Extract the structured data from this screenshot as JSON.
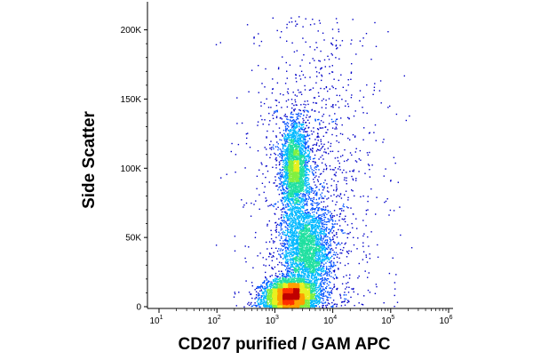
{
  "chart_data": {
    "type": "scatter",
    "style": "density dot plot (flow cytometry)",
    "xlabel": "CD207 purified / GAM APC",
    "ylabel": "Side Scatter",
    "x_scale": "log",
    "xlim": [
      10,
      1000000
    ],
    "x_ticks": [
      {
        "value": 10,
        "base": "10",
        "exp": "1"
      },
      {
        "value": 100,
        "base": "10",
        "exp": "2"
      },
      {
        "value": 1000,
        "base": "10",
        "exp": "3"
      },
      {
        "value": 10000,
        "base": "10",
        "exp": "4"
      },
      {
        "value": 100000,
        "base": "10",
        "exp": "5"
      },
      {
        "value": 1000000,
        "base": "10",
        "exp": "6"
      }
    ],
    "y_scale": "linear",
    "ylim": [
      0,
      210000
    ],
    "y_ticks": [
      {
        "value": 0,
        "label": "0"
      },
      {
        "value": 50000,
        "label": "50K"
      },
      {
        "value": 100000,
        "label": "100K"
      },
      {
        "value": 150000,
        "label": "150K"
      },
      {
        "value": 200000,
        "label": "200K"
      }
    ],
    "grid": false,
    "legend": "none",
    "populations": [
      {
        "center_x": 1800,
        "center_y": 8000,
        "spread_log_x": 0.22,
        "spread_y": 6000,
        "points": 4200,
        "peak_color": "#d40000"
      },
      {
        "center_x": 3500,
        "center_y": 42000,
        "spread_log_x": 0.22,
        "spread_y": 16000,
        "points": 2600,
        "peak_color": "#39d34a"
      },
      {
        "center_x": 2200,
        "center_y": 100000,
        "spread_log_x": 0.12,
        "spread_y": 17000,
        "points": 2300,
        "peak_color": "#2ccf6a"
      },
      {
        "center_x": 5000,
        "center_y": 90000,
        "spread_log_x": 0.55,
        "spread_y": 70000,
        "points": 1400,
        "peak_color": "#0000cc"
      }
    ],
    "density_colors": [
      "#0000c8",
      "#0050ff",
      "#00b8ff",
      "#20e0a0",
      "#80f040",
      "#e8f020",
      "#ffa000",
      "#ff3000",
      "#c00000"
    ]
  }
}
